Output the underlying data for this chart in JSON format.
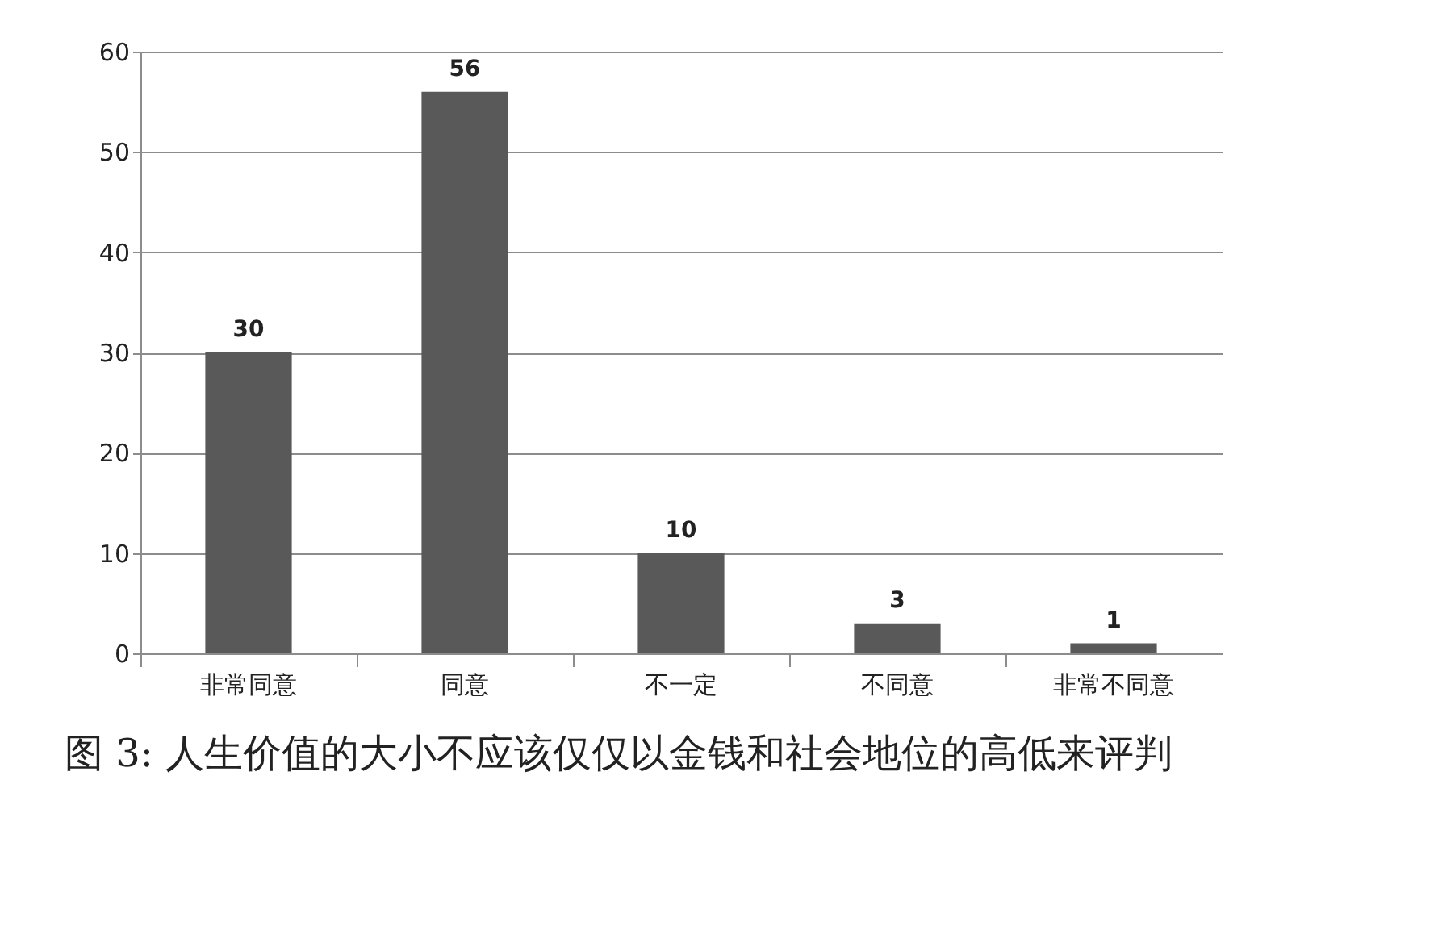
{
  "chart_data": {
    "type": "bar",
    "categories": [
      "非常同意",
      "同意",
      "不一定",
      "不同意",
      "非常不同意"
    ],
    "values": [
      30,
      56,
      10,
      3,
      1
    ],
    "color": "#595959",
    "ylim": [
      0,
      60
    ],
    "yticks": [
      0,
      10,
      20,
      30,
      40,
      50,
      60
    ],
    "grid": "y",
    "data_labels": true,
    "annotations": [
      "图 3: 人生价值的大小不应该仅仅以金钱和社会地位的高低来评判"
    ]
  }
}
